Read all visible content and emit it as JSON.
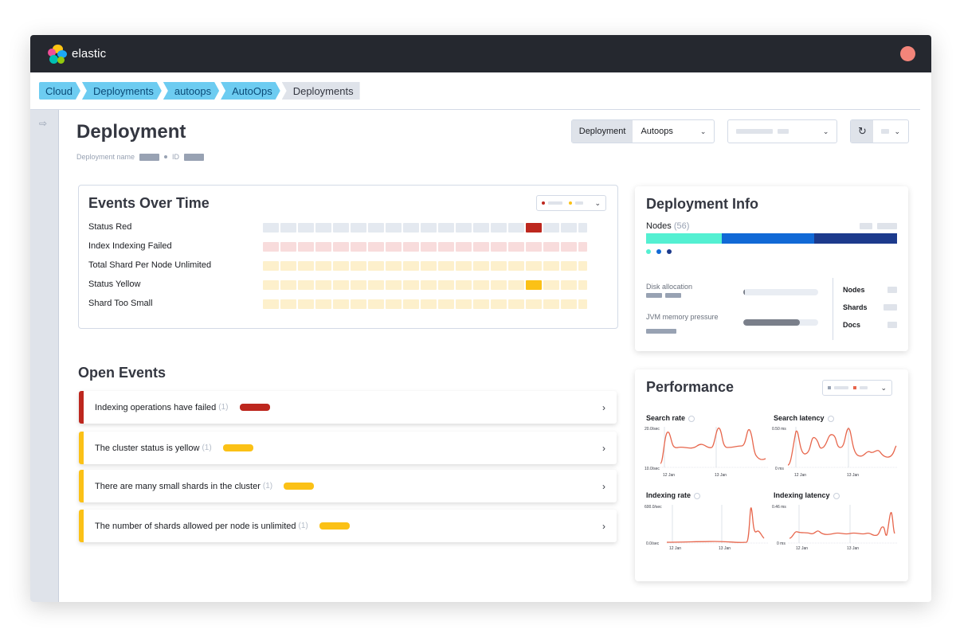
{
  "app": {
    "logo_text": "elastic"
  },
  "breadcrumbs": [
    "Cloud",
    "Deployments",
    "autoops",
    "AutoOps",
    "Deployments"
  ],
  "page": {
    "title": "Deployment",
    "meta_name_label": "Deployment name",
    "meta_id_label": "ID"
  },
  "controls": {
    "deployment_label": "Deployment",
    "deployment_value": "Autoops"
  },
  "events_over_time": {
    "title": "Events Over Time",
    "rows": [
      {
        "label": "Status Red",
        "base_color": "#e4e9f0",
        "highlight_color": "#bd271e",
        "highlight_index": 15
      },
      {
        "label": "Index Indexing Failed",
        "base_color": "#f8dcdc",
        "highlight_color": null,
        "highlight_index": -1
      },
      {
        "label": "Total Shard Per Node Unlimited",
        "base_color": "#fdf0cc",
        "highlight_color": null,
        "highlight_index": -1
      },
      {
        "label": "Status Yellow",
        "base_color": "#fdf0cc",
        "highlight_color": "#fbc116",
        "highlight_index": 15
      },
      {
        "label": "Shard Too Small",
        "base_color": "#fdf0cc",
        "highlight_color": null,
        "highlight_index": -1
      }
    ],
    "cells_per_row": 19
  },
  "open_events": {
    "title": "Open Events",
    "items": [
      {
        "text": "Indexing operations have failed",
        "count": "(1)",
        "color": "#bd271e"
      },
      {
        "text": "The cluster status is yellow",
        "count": "(1)",
        "color": "#fbc116"
      },
      {
        "text": "There are many small shards in the cluster",
        "count": "(1)",
        "color": "#fbc116"
      },
      {
        "text": "The number of shards allowed per node is unlimited",
        "count": "(1)",
        "color": "#fbc116"
      }
    ]
  },
  "deployment_info": {
    "title": "Deployment Info",
    "nodes_label": "Nodes",
    "nodes_count": "(56)",
    "node_segments": [
      {
        "fraction": 0.3,
        "color": "#54f0d2"
      },
      {
        "fraction": 0.37,
        "color": "#1169d6"
      },
      {
        "fraction": 0.33,
        "color": "#1c3a8c"
      }
    ],
    "disk_allocation_label": "Disk allocation",
    "disk_allocation_fraction": 0.01,
    "jvm_label": "JVM memory pressure",
    "jvm_fraction": 0.75,
    "stats": [
      "Nodes",
      "Shards",
      "Docs"
    ]
  },
  "performance": {
    "title": "Performance",
    "charts": [
      {
        "title": "Search rate",
        "y_top": "20.0/sec",
        "y_bottom": "10.0/sec",
        "x_ticks": [
          "12 Jan",
          "13 Jan"
        ]
      },
      {
        "title": "Search latency",
        "y_top": "0.50 ms",
        "y_bottom": "0 ms",
        "x_ticks": [
          "12 Jan",
          "13 Jan"
        ]
      },
      {
        "title": "Indexing rate",
        "y_top": "600.0/sec",
        "y_bottom": "0.0/sec",
        "x_ticks": [
          "12 Jan",
          "13 Jan"
        ]
      },
      {
        "title": "Indexing latency",
        "y_top": "0.46 ms",
        "y_bottom": "0 ms",
        "x_ticks": [
          "12 Jan",
          "13 Jan"
        ]
      }
    ]
  },
  "colors": {
    "accent_red": "#bd271e",
    "accent_yellow": "#fbc116",
    "line": "#e7664c"
  }
}
